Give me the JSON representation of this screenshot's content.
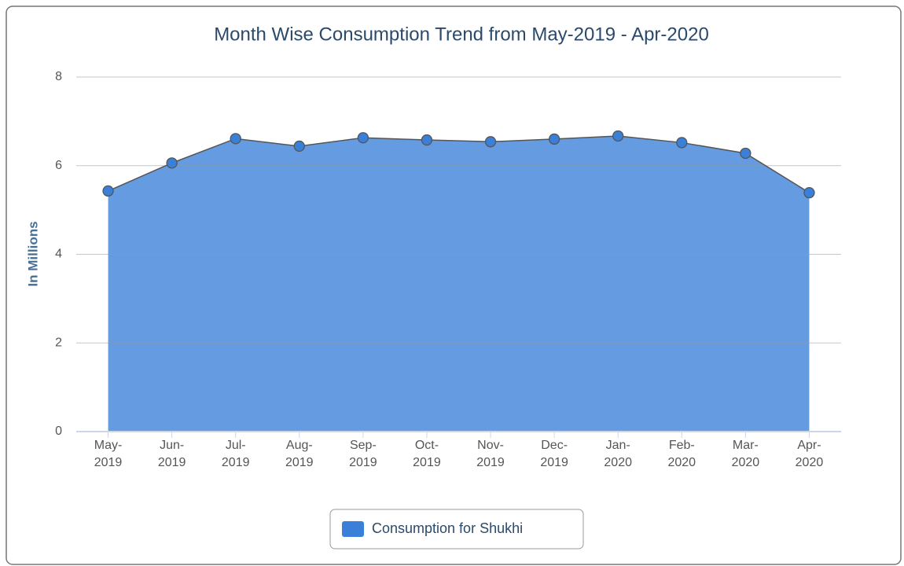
{
  "chart_data": {
    "type": "area",
    "title": "Month Wise Consumption Trend from May-2019 - Apr-2020",
    "y_label": "In Millions",
    "categories": [
      "May-2019",
      "Jun-2019",
      "Jul-2019",
      "Aug-2019",
      "Sep-2019",
      "Oct-2019",
      "Nov-2019",
      "Dec-2019",
      "Jan-2020",
      "Feb-2020",
      "Mar-2020",
      "Apr-2020"
    ],
    "series": [
      {
        "name": "Consumption for Shukhi",
        "color": "#3a80d8",
        "values": [
          5.43,
          6.06,
          6.61,
          6.44,
          6.63,
          6.58,
          6.54,
          6.6,
          6.67,
          6.52,
          6.28,
          5.39
        ]
      }
    ],
    "ylim": [
      0,
      8
    ],
    "yticks": [
      0,
      2,
      4,
      6,
      8
    ],
    "grid": true,
    "legend": "bottom"
  }
}
